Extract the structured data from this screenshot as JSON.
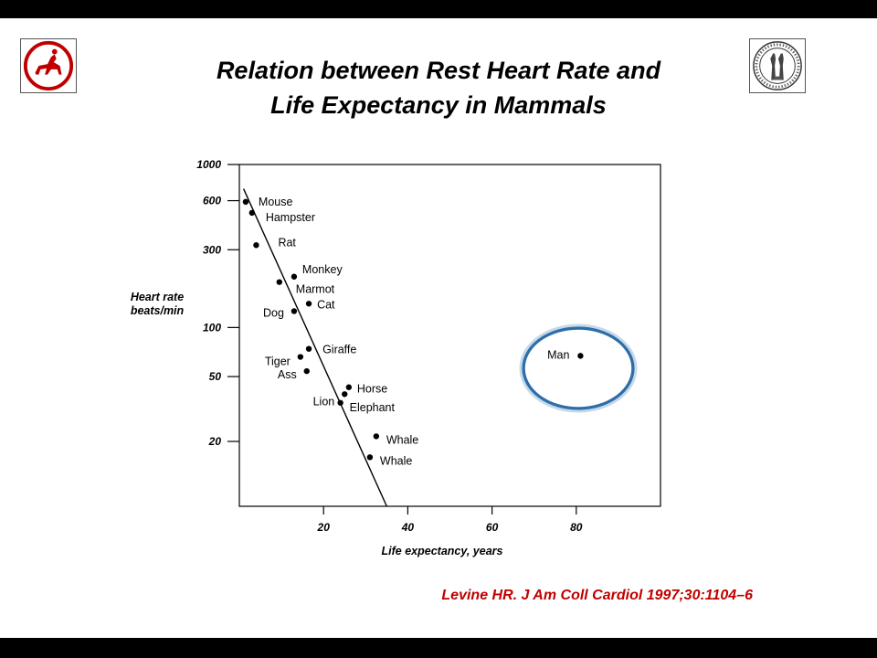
{
  "slide": {
    "title_line1": "Relation between Rest Heart Rate and",
    "title_line2": "Life Expectancy in Mammals",
    "citation": "Levine HR. J Am Coll Cardiol 1997;30:1104–6",
    "citation_color": "#c00000"
  },
  "logos": {
    "left": "centaur-emblem",
    "right": "university-seal"
  },
  "chart_data": {
    "type": "scatter",
    "title": "",
    "xlabel": "Life expectancy, years",
    "ylabel_line1": "Heart rate",
    "ylabel_line2": "beats/min",
    "y_scale": "log",
    "xlim": [
      0,
      100
    ],
    "ylim": [
      8,
      1000
    ],
    "x_ticks": [
      20,
      40,
      60,
      80
    ],
    "y_ticks": [
      1000,
      600,
      300,
      100,
      50,
      20
    ],
    "grid": false,
    "points": [
      {
        "name": "Mouse",
        "x": 1.5,
        "y": 590
      },
      {
        "name": "Hampster",
        "x": 3,
        "y": 505
      },
      {
        "name": "Rat",
        "x": 4,
        "y": 320
      },
      {
        "name": "Monkey",
        "x": 13,
        "y": 205
      },
      {
        "name": "Marmot",
        "x": 9.5,
        "y": 190
      },
      {
        "name": "Cat",
        "x": 16.5,
        "y": 140
      },
      {
        "name": "Dog",
        "x": 13,
        "y": 126
      },
      {
        "name": "Giraffe",
        "x": 16.5,
        "y": 74
      },
      {
        "name": "Tiger",
        "x": 14.5,
        "y": 66
      },
      {
        "name": "Ass",
        "x": 16,
        "y": 54
      },
      {
        "name": "Horse",
        "x": 26,
        "y": 43
      },
      {
        "name": "Lion",
        "x": 25,
        "y": 39
      },
      {
        "name": "Elephant",
        "x": 24,
        "y": 34.5
      },
      {
        "name": "Whale",
        "x": 32.5,
        "y": 21.5
      },
      {
        "name": "Whale",
        "x": 31,
        "y": 16
      },
      {
        "name": "Man",
        "x": 81,
        "y": 67
      }
    ],
    "trend_line": {
      "from": {
        "x": 1,
        "y": 710
      },
      "to": {
        "x": 35,
        "y": 8
      }
    },
    "highlight": {
      "label": "Man",
      "color": "#2e6ea8"
    }
  }
}
